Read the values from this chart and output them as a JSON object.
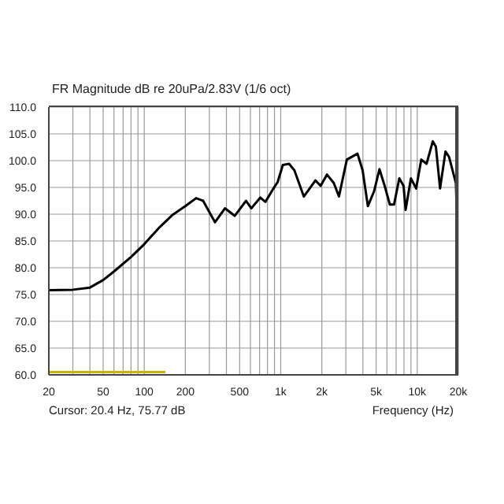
{
  "chart_data": {
    "type": "line",
    "title": "FR Magnitude dB re 20uPa/2.83V (1/6 oct)",
    "xlabel": "Frequency (Hz)",
    "annotations": [
      "Cursor: 20.4 Hz, 75.77 dB"
    ],
    "log": "x",
    "grid": true,
    "marker": "none",
    "line_style": "solid",
    "xlim": [
      20,
      20000
    ],
    "xticks": [
      20,
      {
        "value": 30,
        "label": null
      },
      {
        "value": 40,
        "label": null
      },
      50,
      {
        "value": 60,
        "label": null
      },
      {
        "value": 70,
        "label": null
      },
      {
        "value": 80,
        "label": null
      },
      {
        "value": 90,
        "label": null
      },
      100,
      200,
      {
        "value": 300,
        "label": null
      },
      {
        "value": 400,
        "label": null
      },
      500,
      {
        "value": 600,
        "label": null
      },
      {
        "value": 700,
        "label": null
      },
      {
        "value": 800,
        "label": null
      },
      {
        "value": 900,
        "label": null
      },
      {
        "value": 1000,
        "label": "1k"
      },
      {
        "value": 2000,
        "label": "2k"
      },
      {
        "value": 3000,
        "label": null
      },
      {
        "value": 4000,
        "label": null
      },
      {
        "value": 5000,
        "label": "5k"
      },
      {
        "value": 6000,
        "label": null
      },
      {
        "value": 7000,
        "label": null
      },
      {
        "value": 8000,
        "label": null
      },
      {
        "value": 9000,
        "label": null
      },
      {
        "value": 10000,
        "label": "10k"
      },
      {
        "value": 20000,
        "label": "20k"
      }
    ],
    "ylim": [
      60,
      110
    ],
    "yticks": [
      {
        "value": 60,
        "label": "60.0"
      },
      {
        "value": 65,
        "label": "65.0"
      },
      {
        "value": 70,
        "label": "70.0"
      },
      {
        "value": 75,
        "label": "75.0"
      },
      {
        "value": 80,
        "label": "80.0"
      },
      {
        "value": 85,
        "label": "85.0"
      },
      {
        "value": 90,
        "label": "90.0"
      },
      {
        "value": 95,
        "label": "95.0"
      },
      {
        "value": 100,
        "label": "100.0"
      },
      {
        "value": 105,
        "label": "105.0"
      },
      {
        "value": 110,
        "label": "110.0"
      }
    ],
    "series": [
      {
        "color": "#000000",
        "x": [
          20,
          30,
          40,
          50,
          60,
          80,
          100,
          130,
          160,
          200,
          240,
          270,
          330,
          390,
          460,
          557,
          609,
          708,
          773,
          869,
          949,
          1036,
          1151,
          1259,
          1476,
          1795,
          1960,
          2180,
          2450,
          2670,
          3050,
          3650,
          3980,
          4350,
          4830,
          5290,
          5770,
          6300,
          6760,
          7390,
          7940,
          8220,
          8990,
          9820,
          10700,
          11700,
          13000,
          13700,
          14700,
          16100,
          17100,
          19200,
          19600
        ],
        "values": [
          75.8,
          75.9,
          76.3,
          77.7,
          79.3,
          82.0,
          84.4,
          87.6,
          89.8,
          91.5,
          93.0,
          92.5,
          88.5,
          91.1,
          89.7,
          92.5,
          91.1,
          93.1,
          92.3,
          94.5,
          96.0,
          99.2,
          99.4,
          98.2,
          93.3,
          96.3,
          95.3,
          97.4,
          95.8,
          93.3,
          100.2,
          101.3,
          98.2,
          91.5,
          94.3,
          98.4,
          95.3,
          91.8,
          91.8,
          96.7,
          95.3,
          90.8,
          96.7,
          94.8,
          100.2,
          99.4,
          103.6,
          102.6,
          94.8,
          101.7,
          100.7,
          95.8,
          88.2
        ]
      },
      {
        "color": "#c8b400",
        "x": [
          20,
          143
        ],
        "values": [
          60.5,
          60.5
        ]
      }
    ]
  }
}
